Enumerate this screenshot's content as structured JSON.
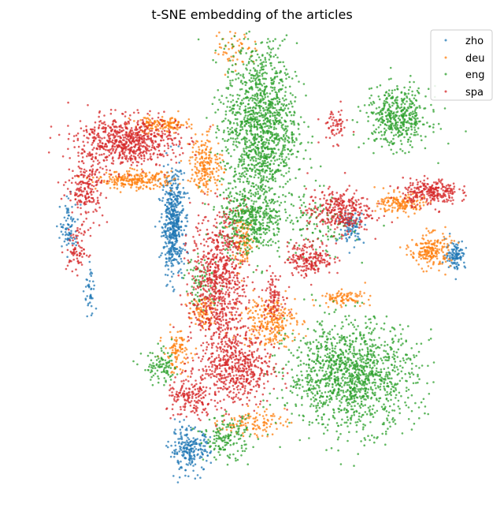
{
  "chart_data": {
    "type": "scatter",
    "title": "t-SNE embedding of the articles",
    "xlabel": "",
    "ylabel": "",
    "axes_visible": false,
    "grid": false,
    "legend": {
      "placement": "top-right"
    },
    "series": [
      {
        "name": "zho",
        "color": "#1f77b4",
        "clusters": [
          {
            "center": [
              -95,
              75
            ],
            "spread": [
              12,
              60
            ],
            "count": 520
          },
          {
            "center": [
              -75,
              -215
            ],
            "spread": [
              22,
              25
            ],
            "count": 230
          },
          {
            "center": [
              120,
              70
            ],
            "spread": [
              14,
              18
            ],
            "count": 90
          },
          {
            "center": [
              245,
              35
            ],
            "spread": [
              11,
              17
            ],
            "count": 110
          },
          {
            "center": [
              -220,
              70
            ],
            "spread": [
              10,
              30
            ],
            "count": 80
          },
          {
            "center": [
              -195,
              -15
            ],
            "spread": [
              6,
              35
            ],
            "count": 40
          }
        ]
      },
      {
        "name": "deu",
        "color": "#ff7f0e",
        "clusters": [
          {
            "center": [
              -140,
              130
            ],
            "spread": [
              42,
              10
            ],
            "count": 240
          },
          {
            "center": [
              -110,
              200
            ],
            "spread": [
              32,
              10
            ],
            "count": 150
          },
          {
            "center": [
              -55,
              150
            ],
            "spread": [
              18,
              32
            ],
            "count": 200
          },
          {
            "center": [
              -10,
              50
            ],
            "spread": [
              12,
              30
            ],
            "count": 110
          },
          {
            "center": [
              20,
              -50
            ],
            "spread": [
              30,
              30
            ],
            "count": 260
          },
          {
            "center": [
              180,
              100
            ],
            "spread": [
              25,
              12
            ],
            "count": 150
          },
          {
            "center": [
              215,
              40
            ],
            "spread": [
              22,
              20
            ],
            "count": 200
          },
          {
            "center": [
              110,
              -20
            ],
            "spread": [
              25,
              8
            ],
            "count": 90
          },
          {
            "center": [
              -90,
              -90
            ],
            "spread": [
              15,
              25
            ],
            "count": 100
          },
          {
            "center": [
              -60,
              -40
            ],
            "spread": [
              15,
              18
            ],
            "count": 90
          },
          {
            "center": [
              0,
              -180
            ],
            "spread": [
              35,
              15
            ],
            "count": 110
          },
          {
            "center": [
              -20,
              300
            ],
            "spread": [
              25,
              25
            ],
            "count": 60
          }
        ]
      },
      {
        "name": "eng",
        "color": "#2ca02c",
        "clusters": [
          {
            "center": [
              10,
              200
            ],
            "spread": [
              40,
              95
            ],
            "count": 1300
          },
          {
            "center": [
              0,
              80
            ],
            "spread": [
              35,
              40
            ],
            "count": 450
          },
          {
            "center": [
              175,
              210
            ],
            "spread": [
              35,
              35
            ],
            "count": 450
          },
          {
            "center": [
              120,
              -120
            ],
            "spread": [
              70,
              62
            ],
            "count": 1300
          },
          {
            "center": [
              -30,
              -200
            ],
            "spread": [
              25,
              25
            ],
            "count": 160
          },
          {
            "center": [
              -110,
              -110
            ],
            "spread": [
              20,
              20
            ],
            "count": 100
          },
          {
            "center": [
              80,
              70
            ],
            "spread": [
              40,
              40
            ],
            "count": 120
          },
          {
            "center": [
              -60,
              0
            ],
            "spread": [
              20,
              30
            ],
            "count": 80
          }
        ]
      },
      {
        "name": "spa",
        "color": "#d62728",
        "clusters": [
          {
            "center": [
              -150,
              180
            ],
            "spread": [
              55,
              28
            ],
            "count": 700
          },
          {
            "center": [
              -200,
              120
            ],
            "spread": [
              20,
              35
            ],
            "count": 200
          },
          {
            "center": [
              -40,
              0
            ],
            "spread": [
              30,
              80
            ],
            "count": 750
          },
          {
            "center": [
              -20,
              -110
            ],
            "spread": [
              40,
              45
            ],
            "count": 550
          },
          {
            "center": [
              105,
              90
            ],
            "spread": [
              35,
              25
            ],
            "count": 320
          },
          {
            "center": [
              70,
              30
            ],
            "spread": [
              25,
              20
            ],
            "count": 200
          },
          {
            "center": [
              215,
              115
            ],
            "spread": [
              30,
              15
            ],
            "count": 260
          },
          {
            "center": [
              -75,
              -150
            ],
            "spread": [
              25,
              25
            ],
            "count": 160
          },
          {
            "center": [
              25,
              -15
            ],
            "spread": [
              12,
              25
            ],
            "count": 90
          },
          {
            "center": [
              -210,
              40
            ],
            "spread": [
              12,
              25
            ],
            "count": 80
          },
          {
            "center": [
              100,
              200
            ],
            "spread": [
              15,
              20
            ],
            "count": 60
          }
        ]
      }
    ],
    "xlim": [
      -275,
      275
    ],
    "ylim": [
      -270,
      320
    ]
  }
}
